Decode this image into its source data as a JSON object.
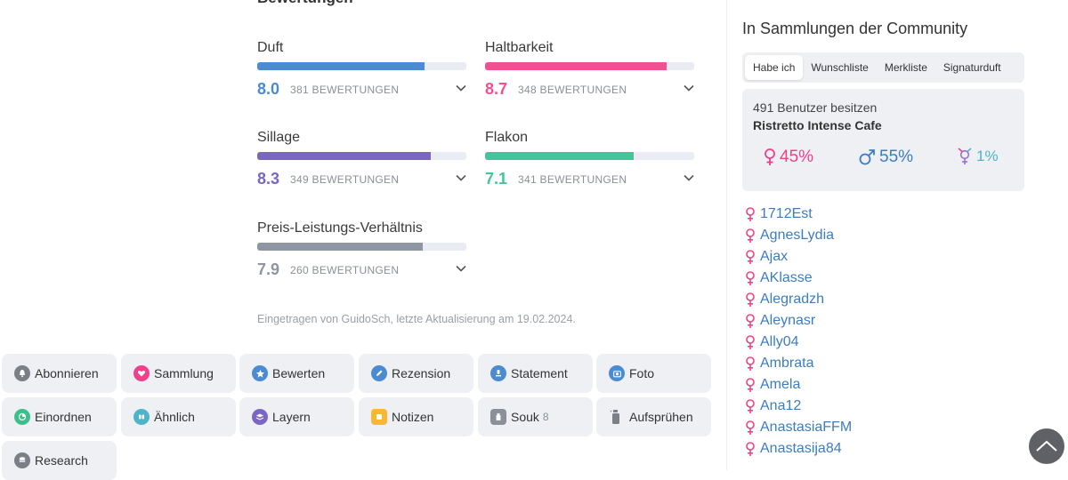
{
  "ratings_section": {
    "heading": "Bewertungen",
    "items": [
      {
        "label": "Duft",
        "score": "8.0",
        "count": "381 BEWERTUNGEN",
        "fill_fraction": 0.8,
        "color": "#4a8bd1"
      },
      {
        "label": "Haltbarkeit",
        "score": "8.7",
        "count": "348 BEWERTUNGEN",
        "fill_fraction": 0.87,
        "color": "#f34f93"
      },
      {
        "label": "Sillage",
        "score": "8.3",
        "count": "349 BEWERTUNGEN",
        "fill_fraction": 0.83,
        "color": "#7c66c4"
      },
      {
        "label": "Flakon",
        "score": "7.1",
        "count": "341 BEWERTUNGEN",
        "fill_fraction": 0.71,
        "color": "#43c59b"
      },
      {
        "label": "Preis-Leistungs-Verhältnis",
        "score": "7.9",
        "count": "260 BEWERTUNGEN",
        "fill_fraction": 0.79,
        "color": "#8e95a3"
      }
    ],
    "meta": "Eingetragen von GuidoSch, letzte Aktualisierung am 19.02.2024."
  },
  "actions": [
    {
      "label": "Abonnieren",
      "icon": "bell-icon",
      "color": "#7b7f88"
    },
    {
      "label": "Sammlung",
      "icon": "heart-icon",
      "color": "#f0408c"
    },
    {
      "label": "Bewerten",
      "icon": "star-icon",
      "color": "#4a8bd1"
    },
    {
      "label": "Rezension",
      "icon": "pencil-icon",
      "color": "#4a8bd1"
    },
    {
      "label": "Statement",
      "icon": "speech-icon",
      "color": "#4a8bd1"
    },
    {
      "label": "Foto",
      "icon": "camera-icon",
      "color": "#4a8bd1"
    },
    {
      "label": "Einordnen",
      "icon": "pie-icon",
      "color": "#3dbf8c"
    },
    {
      "label": "Ähnlich",
      "icon": "similar-icon",
      "color": "#4fb3c9"
    },
    {
      "label": "Layern",
      "icon": "layers-icon",
      "color": "#7c66c4"
    },
    {
      "label": "Notizen",
      "icon": "note-icon",
      "color": "#f5b82e"
    },
    {
      "label": "Souk",
      "icon": "bottle-icon",
      "color": "#8a8f99",
      "badge": "8"
    },
    {
      "label": "Aufsprühen",
      "icon": "spray-icon",
      "color": "#7b7f88"
    },
    {
      "label": "Research",
      "icon": "database-icon",
      "color": "#7b7f88"
    }
  ],
  "sidebar": {
    "title": "In Sammlungen der Community",
    "tabs": [
      "Habe ich",
      "Wunschliste",
      "Merkliste",
      "Signaturduft"
    ],
    "active_tab": "Habe ich",
    "owners": {
      "count_text": "491 Benutzer besitzen",
      "perfume_name": "Ristretto Intense Cafe",
      "female": "45%",
      "male": "55%",
      "other": "1%"
    },
    "users": [
      "1712Est",
      "AgnesLydia",
      "Ajax",
      "AKlasse",
      "Alegradzh",
      "Aleynasr",
      "Ally04",
      "Ambrata",
      "Amela",
      "Ana12",
      "AnastasiaFFM",
      "Anastasija84"
    ],
    "colors": {
      "female": "#f0408c",
      "male": "#3d7dbd",
      "other": "#4fb3c9"
    }
  }
}
